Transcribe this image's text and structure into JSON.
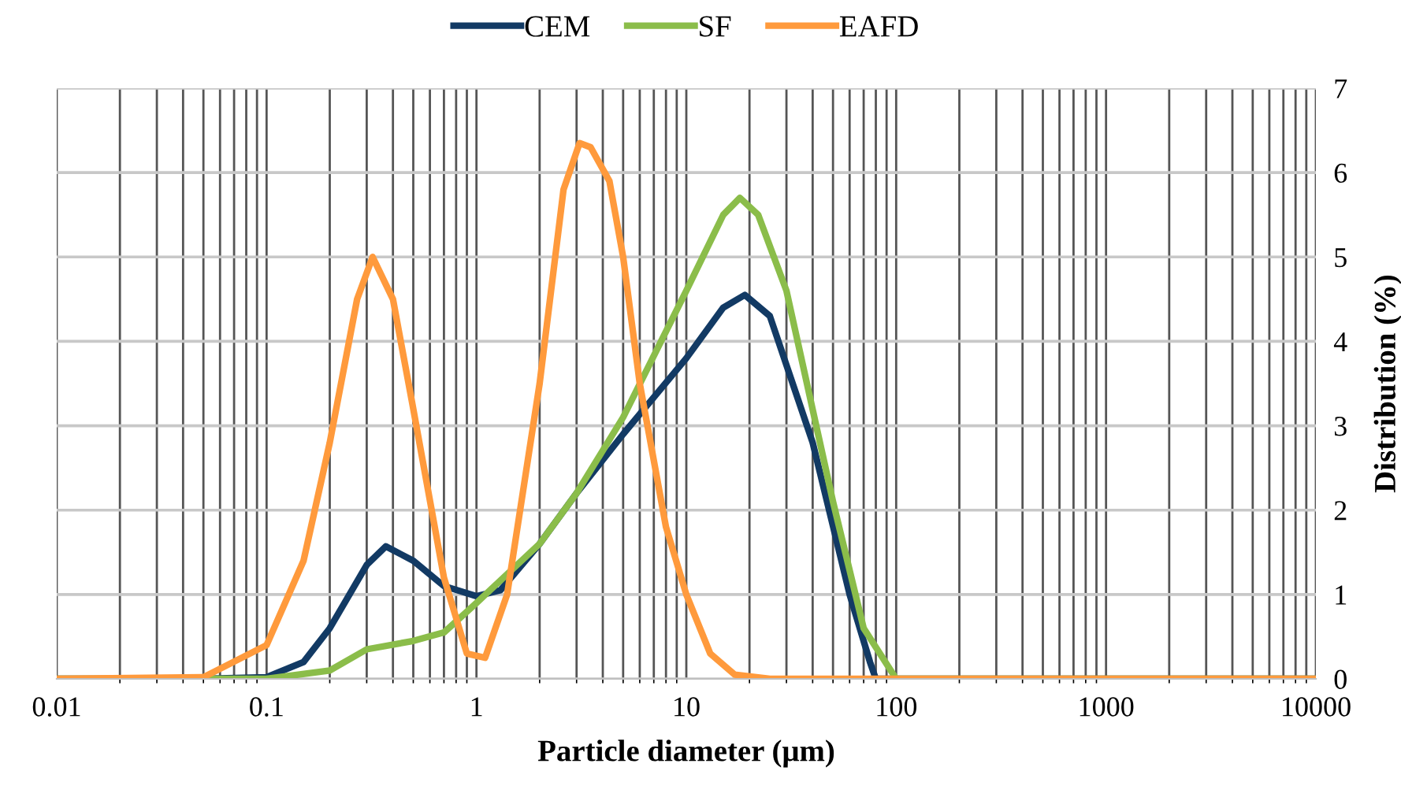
{
  "chart_data": {
    "type": "line",
    "xlabel": "Particle diameter (μm)",
    "ylabel": "Distribution (%)",
    "log": "x",
    "grid": true,
    "legend": "top",
    "line_style": "solid",
    "marker": "none",
    "xlim": [
      0.01,
      10000
    ],
    "xticks": [
      0.01,
      0.1,
      1,
      10,
      100,
      1000,
      10000
    ],
    "ylim": [
      0,
      7
    ],
    "yticks": [
      0,
      1,
      2,
      3,
      4,
      5,
      6,
      7
    ],
    "series": [
      {
        "name": "CEM",
        "color": "#123a64",
        "x": [
          0.01,
          0.05,
          0.1,
          0.15,
          0.2,
          0.3,
          0.37,
          0.5,
          0.7,
          1,
          1.3,
          2,
          3,
          5,
          10,
          15,
          19,
          25,
          40,
          60,
          75,
          80,
          10000
        ],
        "values": [
          0,
          0,
          0.02,
          0.2,
          0.6,
          1.35,
          1.57,
          1.4,
          1.1,
          0.98,
          1.05,
          1.6,
          2.2,
          2.9,
          3.8,
          4.4,
          4.55,
          4.3,
          2.8,
          1.0,
          0.2,
          0,
          0
        ]
      },
      {
        "name": "SF",
        "color": "#8bbd4a",
        "x": [
          0.01,
          0.1,
          0.2,
          0.3,
          0.5,
          0.7,
          1,
          2,
          3,
          5,
          10,
          15,
          18,
          22,
          30,
          50,
          70,
          100,
          10000
        ],
        "values": [
          0,
          0,
          0.1,
          0.35,
          0.45,
          0.55,
          0.9,
          1.6,
          2.2,
          3.1,
          4.6,
          5.5,
          5.7,
          5.5,
          4.6,
          2.1,
          0.6,
          0,
          0
        ]
      },
      {
        "name": "EAFD",
        "color": "#ff9a3c",
        "x": [
          0.01,
          0.05,
          0.1,
          0.15,
          0.2,
          0.27,
          0.32,
          0.4,
          0.5,
          0.7,
          0.9,
          1.1,
          1.4,
          2,
          2.6,
          3.1,
          3.5,
          4.3,
          5,
          6,
          8,
          10,
          13,
          17,
          25,
          10000
        ],
        "values": [
          0,
          0.02,
          0.4,
          1.4,
          2.8,
          4.5,
          5.0,
          4.5,
          3.2,
          1.2,
          0.3,
          0.25,
          1.0,
          3.5,
          5.8,
          6.35,
          6.3,
          5.9,
          5.0,
          3.5,
          1.8,
          1.0,
          0.3,
          0.05,
          0,
          0
        ]
      }
    ]
  }
}
